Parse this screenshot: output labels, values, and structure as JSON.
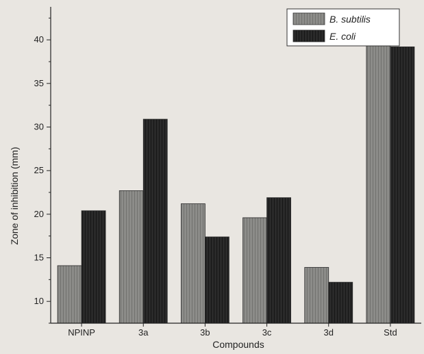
{
  "chart_data": {
    "type": "bar",
    "categories": [
      "NPINP",
      "3a",
      "3b",
      "3c",
      "3d",
      "Std"
    ],
    "series": [
      {
        "name": "B. subtilis",
        "values": [
          14.1,
          22.7,
          21.2,
          19.6,
          13.9,
          42.9
        ],
        "color": "#7a7a78"
      },
      {
        "name": "E. coli",
        "values": [
          20.4,
          30.9,
          17.4,
          21.9,
          12.2,
          39.2
        ],
        "color": "#262626"
      }
    ],
    "xlabel": "Compounds",
    "ylabel": "Zone of inhibition (mm)",
    "ylim": [
      7.5,
      43
    ],
    "yticks": [
      10,
      15,
      20,
      25,
      30,
      35,
      40
    ],
    "legend_position": "top-right",
    "grid": false
  }
}
